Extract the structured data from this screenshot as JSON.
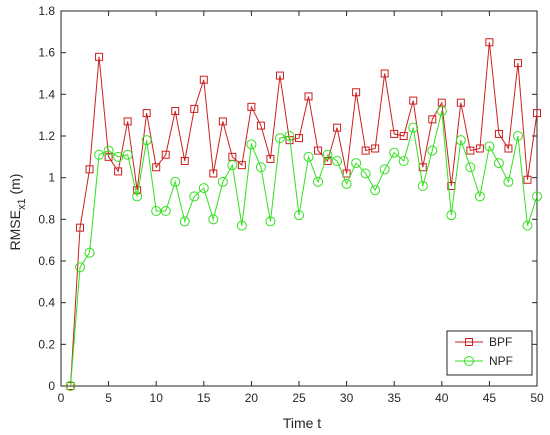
{
  "chart_data": {
    "type": "line",
    "xlabel": "Time t",
    "ylabel_main": "RMSE",
    "ylabel_sub": "x1",
    "ylabel_unit": " (m)",
    "xlim": [
      0,
      50
    ],
    "ylim": [
      0,
      1.8
    ],
    "xticks": [
      0,
      5,
      10,
      15,
      20,
      25,
      30,
      35,
      40,
      45,
      50
    ],
    "yticks": [
      0,
      0.2,
      0.4,
      0.6,
      0.8,
      1,
      1.2,
      1.4,
      1.6,
      1.8
    ],
    "grid": false,
    "legend_position": "bottom-right",
    "x": [
      1,
      2,
      3,
      4,
      5,
      6,
      7,
      8,
      9,
      10,
      11,
      12,
      13,
      14,
      15,
      16,
      17,
      18,
      19,
      20,
      21,
      22,
      23,
      24,
      25,
      26,
      27,
      28,
      29,
      30,
      31,
      32,
      33,
      34,
      35,
      36,
      37,
      38,
      39,
      40,
      41,
      42,
      43,
      44,
      45,
      46,
      47,
      48,
      49,
      50
    ],
    "series": [
      {
        "name": "BPF",
        "color": "#cc1f1f",
        "marker": "square",
        "values": [
          0,
          0.76,
          1.04,
          1.58,
          1.1,
          1.03,
          1.27,
          0.94,
          1.31,
          1.05,
          1.11,
          1.32,
          1.08,
          1.33,
          1.47,
          1.02,
          1.27,
          1.1,
          1.06,
          1.34,
          1.25,
          1.09,
          1.49,
          1.18,
          1.19,
          1.39,
          1.13,
          1.08,
          1.24,
          1.02,
          1.41,
          1.13,
          1.14,
          1.5,
          1.21,
          1.2,
          1.37,
          1.05,
          1.28,
          1.36,
          0.96,
          1.36,
          1.13,
          1.14,
          1.65,
          1.21,
          1.14,
          1.55,
          0.99,
          1.31
        ]
      },
      {
        "name": "NPF",
        "color": "#33e01f",
        "marker": "circle",
        "values": [
          0,
          0.57,
          0.64,
          1.11,
          1.13,
          1.1,
          1.11,
          0.91,
          1.18,
          0.84,
          0.84,
          0.98,
          0.79,
          0.91,
          0.95,
          0.8,
          0.98,
          1.06,
          0.77,
          1.16,
          1.05,
          0.79,
          1.19,
          1.2,
          0.82,
          1.1,
          0.98,
          1.11,
          1.08,
          0.97,
          1.07,
          1.02,
          0.94,
          1.04,
          1.12,
          1.08,
          1.24,
          0.96,
          1.13,
          1.32,
          0.82,
          1.18,
          1.05,
          0.91,
          1.15,
          1.07,
          0.98,
          1.2,
          0.77,
          0.91
        ]
      }
    ]
  }
}
